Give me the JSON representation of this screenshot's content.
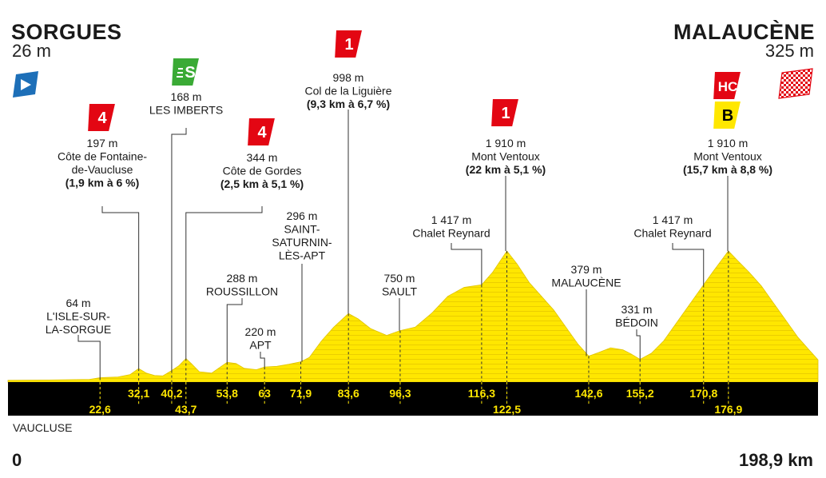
{
  "start": {
    "name": "SORGUES",
    "altitude": "26 m"
  },
  "finish": {
    "name": "MALAUCÈNE",
    "altitude": "325 m"
  },
  "department": "VAUCLUSE",
  "distance_start": "0",
  "distance_total": "198,9 km",
  "colors": {
    "profile": "#ffe700",
    "band": "#000000",
    "km_text": "#ffe700",
    "cat_red": "#e30613",
    "sprint_green": "#3aaa35",
    "bonus_yellow": "#ffe700",
    "start_blue": "#1d6fb8"
  },
  "chart_data": {
    "type": "area",
    "xlabel": "",
    "ylabel": "",
    "xlim": [
      0,
      198.9
    ],
    "ylim": [
      0,
      1910
    ],
    "profile": [
      [
        0,
        26
      ],
      [
        10,
        30
      ],
      [
        20,
        40
      ],
      [
        22.6,
        64
      ],
      [
        27,
        75
      ],
      [
        30,
        110
      ],
      [
        32.1,
        197
      ],
      [
        34,
        130
      ],
      [
        36,
        95
      ],
      [
        38,
        90
      ],
      [
        40.2,
        168
      ],
      [
        42,
        240
      ],
      [
        43.7,
        344
      ],
      [
        45,
        270
      ],
      [
        47,
        150
      ],
      [
        50,
        130
      ],
      [
        53.8,
        288
      ],
      [
        56,
        270
      ],
      [
        58,
        200
      ],
      [
        61,
        180
      ],
      [
        63,
        220
      ],
      [
        66,
        230
      ],
      [
        69,
        260
      ],
      [
        71.9,
        296
      ],
      [
        74,
        360
      ],
      [
        77,
        600
      ],
      [
        80,
        800
      ],
      [
        83.6,
        998
      ],
      [
        86,
        920
      ],
      [
        89,
        780
      ],
      [
        93,
        680
      ],
      [
        96.3,
        750
      ],
      [
        100,
        800
      ],
      [
        104,
        1000
      ],
      [
        108,
        1250
      ],
      [
        112,
        1380
      ],
      [
        116.3,
        1417
      ],
      [
        119,
        1600
      ],
      [
        122.5,
        1910
      ],
      [
        125,
        1720
      ],
      [
        128,
        1450
      ],
      [
        131,
        1250
      ],
      [
        134,
        1050
      ],
      [
        137,
        800
      ],
      [
        140,
        550
      ],
      [
        142.6,
        379
      ],
      [
        145,
        430
      ],
      [
        148,
        500
      ],
      [
        151,
        470
      ],
      [
        153,
        410
      ],
      [
        155.2,
        331
      ],
      [
        158,
        420
      ],
      [
        161,
        600
      ],
      [
        164,
        850
      ],
      [
        167,
        1100
      ],
      [
        170.8,
        1417
      ],
      [
        173,
        1600
      ],
      [
        176.9,
        1910
      ],
      [
        179,
        1780
      ],
      [
        182,
        1600
      ],
      [
        185,
        1400
      ],
      [
        188,
        1150
      ],
      [
        191,
        900
      ],
      [
        194,
        650
      ],
      [
        197,
        450
      ],
      [
        198.9,
        325
      ]
    ],
    "km_markers": [
      {
        "km": 22.6,
        "label": "22,6",
        "row": "bottom"
      },
      {
        "km": 32.1,
        "label": "32,1",
        "row": "top"
      },
      {
        "km": 40.2,
        "label": "40,2",
        "row": "top"
      },
      {
        "km": 43.7,
        "label": "43,7",
        "row": "bottom"
      },
      {
        "km": 53.8,
        "label": "53,8",
        "row": "top"
      },
      {
        "km": 63,
        "label": "63",
        "row": "top"
      },
      {
        "km": 71.9,
        "label": "71,9",
        "row": "top"
      },
      {
        "km": 83.6,
        "label": "83,6",
        "row": "top"
      },
      {
        "km": 96.3,
        "label": "96,3",
        "row": "top"
      },
      {
        "km": 116.3,
        "label": "116,3",
        "row": "top"
      },
      {
        "km": 122.5,
        "label": "122,5",
        "row": "bottom"
      },
      {
        "km": 142.6,
        "label": "142,6",
        "row": "top"
      },
      {
        "km": 155.2,
        "label": "155,2",
        "row": "top"
      },
      {
        "km": 170.8,
        "label": "170,8",
        "row": "top"
      },
      {
        "km": 176.9,
        "label": "176,9",
        "row": "bottom"
      }
    ],
    "waypoints": [
      {
        "id": "isle",
        "km": 22.6,
        "altitude": "64 m",
        "name": "L'ISLE-SUR-\nLA-SORGUE",
        "climb": ""
      },
      {
        "id": "fontaine",
        "km": 32.1,
        "altitude": "197 m",
        "name": "Côte de Fontaine-\nde-Vaucluse",
        "climb": "(1,9 km à 6 %)",
        "badge": "4",
        "badge_type": "cat"
      },
      {
        "id": "imberts",
        "km": 40.2,
        "altitude": "168 m",
        "name": "LES IMBERTS",
        "climb": "",
        "badge": "S",
        "badge_type": "sprint"
      },
      {
        "id": "gordes",
        "km": 43.7,
        "altitude": "344 m",
        "name": "Côte de Gordes",
        "climb": "(2,5 km à 5,1 %)",
        "badge": "4",
        "badge_type": "cat"
      },
      {
        "id": "roussillon",
        "km": 53.8,
        "altitude": "288 m",
        "name": "ROUSSILLON",
        "climb": ""
      },
      {
        "id": "apt",
        "km": 63,
        "altitude": "220 m",
        "name": "APT",
        "climb": ""
      },
      {
        "id": "saturnin",
        "km": 71.9,
        "altitude": "296 m",
        "name": "SAINT-\nSATURNIN-\nLÈS-APT",
        "climb": ""
      },
      {
        "id": "liguiere",
        "km": 83.6,
        "altitude": "998 m",
        "name": "Col de la Liguière",
        "climb": "(9,3 km à 6,7 %)",
        "badge": "1",
        "badge_type": "cat"
      },
      {
        "id": "sault",
        "km": 96.3,
        "altitude": "750 m",
        "name": "SAULT",
        "climb": ""
      },
      {
        "id": "reynard1",
        "km": 116.3,
        "altitude": "1 417 m",
        "name": "Chalet Reynard",
        "climb": ""
      },
      {
        "id": "ventoux1",
        "km": 122.5,
        "altitude": "1 910 m",
        "name": "Mont Ventoux",
        "climb": "(22 km à 5,1 %)",
        "badge": "1",
        "badge_type": "cat"
      },
      {
        "id": "malaucene",
        "km": 142.6,
        "altitude": "379 m",
        "name": "MALAUCÈNE",
        "climb": ""
      },
      {
        "id": "bedoin",
        "km": 155.2,
        "altitude": "331 m",
        "name": "BÉDOIN",
        "climb": ""
      },
      {
        "id": "reynard2",
        "km": 170.8,
        "altitude": "1 417 m",
        "name": "Chalet Reynard",
        "climb": ""
      },
      {
        "id": "ventoux2",
        "km": 176.9,
        "altitude": "1 910 m",
        "name": "Mont Ventoux",
        "climb": "(15,7 km à 8,8 %)",
        "badge": "HC",
        "badge_type": "cat",
        "badge2": "B",
        "badge2_type": "bonus"
      }
    ]
  }
}
